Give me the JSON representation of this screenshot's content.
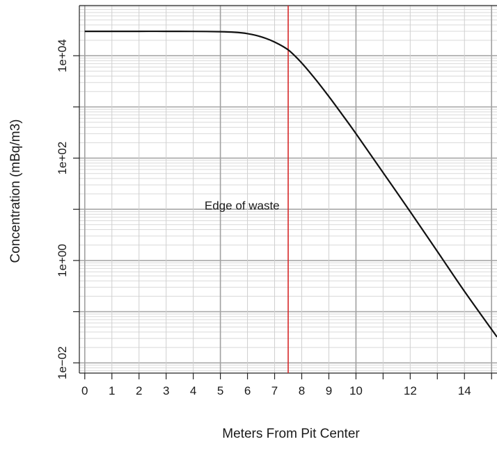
{
  "chart_data": {
    "type": "line",
    "title": "",
    "xlabel": "Meters From Pit Center",
    "ylabel": "Concentration (mBq/m3)",
    "xlim": [
      -0.2,
      15.2
    ],
    "ylim_log10": [
      -2.2,
      4.98
    ],
    "y_scale": "log",
    "grid": true,
    "x_ticks": [
      0,
      1,
      2,
      3,
      4,
      5,
      6,
      7,
      8,
      9,
      10,
      12,
      14
    ],
    "x_tick_labels": [
      "0",
      "1",
      "2",
      "3",
      "4",
      "5",
      "6",
      "7",
      "8",
      "9",
      "10",
      "12",
      "14"
    ],
    "x_grid_minor": [
      0,
      1,
      2,
      3,
      4,
      5,
      6,
      7,
      8,
      9,
      10,
      11,
      12,
      13,
      14,
      15
    ],
    "y_ticks": [
      0.01,
      0.1,
      1,
      10,
      100,
      1000,
      10000
    ],
    "y_tick_labels": [
      "1e−02",
      "",
      "1e+00",
      "",
      "1e+02",
      "",
      "1e+04"
    ],
    "annotations": [
      {
        "text": "Edge of waste",
        "x": 5.8,
        "y": 12
      }
    ],
    "vline": {
      "x": 7.5,
      "color": "#d62728"
    },
    "series": [
      {
        "color": "#111111",
        "x": [
          0,
          1,
          2,
          3,
          4,
          5,
          5.5,
          6,
          6.5,
          7,
          7.5,
          8,
          8.5,
          9,
          9.5,
          10,
          11,
          12,
          13,
          14,
          15.2
        ],
        "y": [
          30000,
          30000,
          30000,
          30000,
          29900,
          29500,
          28800,
          27000,
          23500,
          18500,
          13000,
          7200,
          3500,
          1600,
          700,
          300,
          52,
          9,
          1.5,
          0.25,
          0.032
        ]
      }
    ]
  }
}
